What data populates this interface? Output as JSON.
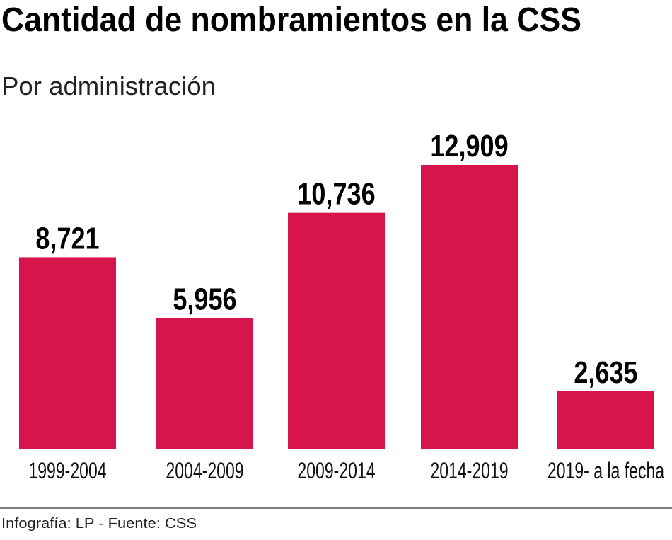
{
  "chart_data": {
    "type": "bar",
    "title": "Cantidad de nombramientos en la CSS",
    "subtitle": "Por administración",
    "categories": [
      "1999-2004",
      "2004-2009",
      "2009-2014",
      "2014-2019",
      "2019- a la fecha"
    ],
    "values": [
      8721,
      5956,
      10736,
      12909,
      2635
    ],
    "value_labels": [
      "8,721",
      "5,956",
      "10,736",
      "12,909",
      "2,635"
    ],
    "xlabel": "",
    "ylabel": "",
    "ylim": [
      0,
      12909
    ],
    "grid": false,
    "bar_color": "#d7144b",
    "source": "Infografía: LP - Fuente: CSS"
  }
}
